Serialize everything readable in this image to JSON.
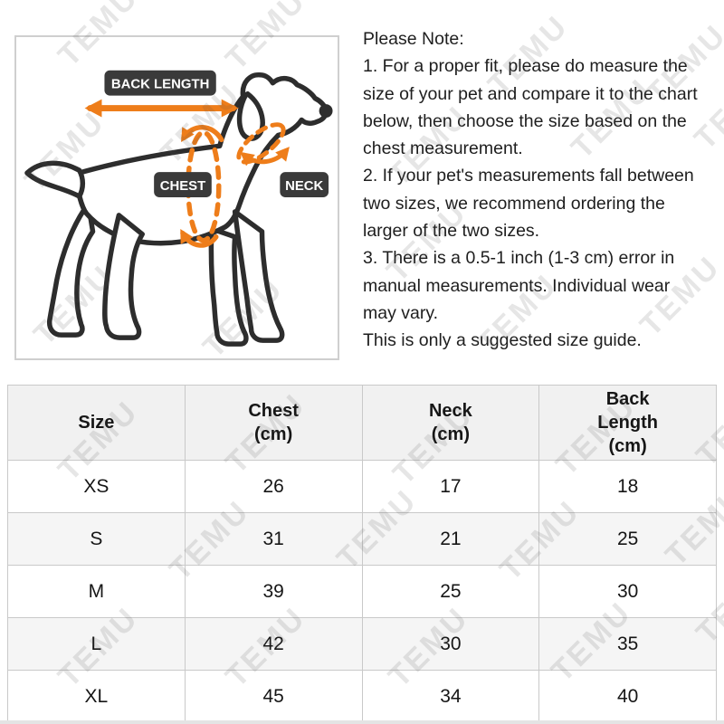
{
  "watermark": {
    "text": "TEMU"
  },
  "diagram": {
    "labels": {
      "back_length": "BACK LENGTH",
      "chest": "CHEST",
      "neck": "NECK"
    }
  },
  "note": {
    "title": "Please Note:",
    "lines": [
      "1. For a proper fit, please do measure the",
      "size of your pet and compare it to the chart",
      "below, then choose the size based on the",
      "chest measurement.",
      "2. If your pet's measurements fall between",
      "two sizes, we recommend ordering the",
      "larger of the two sizes.",
      "3. There is a 0.5-1 inch (1-3 cm) error in",
      "manual measurements. Individual wear",
      "may vary.",
      "This is only a suggested size guide."
    ]
  },
  "size_table": {
    "headers": [
      "Size",
      "Chest\n(cm)",
      "Neck\n(cm)",
      "Back\nLength\n(cm)"
    ],
    "rows": [
      [
        "XS",
        "26",
        "17",
        "18"
      ],
      [
        "S",
        "31",
        "21",
        "25"
      ],
      [
        "M",
        "39",
        "25",
        "30"
      ],
      [
        "L",
        "42",
        "30",
        "35"
      ],
      [
        "XL",
        "45",
        "34",
        "40"
      ]
    ]
  },
  "colors": {
    "accent_orange": "#ee7d1a",
    "label_background": "#3a3a3a",
    "dog_line": "#2d2d2d",
    "table_header_bg": "#f1f1f1",
    "table_alt_row_bg": "#f5f5f5",
    "table_border": "#c9c9c9"
  }
}
